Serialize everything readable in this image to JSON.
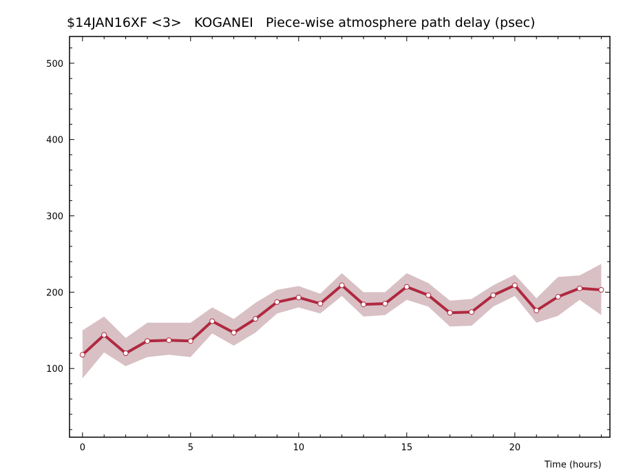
{
  "chart_data": {
    "type": "line",
    "title": "$14JAN16XF <3>   KOGANEI   Piece-wise atmosphere path delay (psec)",
    "xlabel": "Time (hours)",
    "ylabel": "",
    "xlim": [
      -0.6,
      24.4
    ],
    "ylim": [
      10,
      535
    ],
    "x_ticks": [
      0,
      5,
      10,
      15,
      20
    ],
    "y_ticks": [
      100,
      200,
      300,
      400,
      500
    ],
    "x_tick_labels": [
      "0",
      "5",
      "10",
      "15",
      "20"
    ],
    "y_tick_labels": [
      "100",
      "200",
      "300",
      "400",
      "500"
    ],
    "grid": false,
    "colors": {
      "line": "#b0283f",
      "band": "#d8c0c4",
      "marker_fill": "#ffffff"
    },
    "series": [
      {
        "x": [
          0,
          1,
          2,
          3,
          4,
          5,
          6,
          7,
          8,
          9,
          10,
          11,
          12,
          13,
          14,
          15,
          16,
          17,
          18,
          19,
          20,
          21,
          22,
          23,
          24
        ],
        "values": [
          118,
          144,
          120,
          136,
          137,
          136,
          162,
          147,
          165,
          187,
          193,
          185,
          209,
          184,
          185,
          207,
          196,
          173,
          174,
          196,
          209,
          176,
          194,
          205,
          203
        ],
        "upper": [
          150,
          168,
          140,
          160,
          160,
          160,
          180,
          165,
          186,
          203,
          208,
          198,
          225,
          200,
          200,
          225,
          212,
          189,
          191,
          209,
          223,
          192,
          220,
          222,
          237
        ],
        "lower": [
          87,
          121,
          103,
          115,
          118,
          115,
          146,
          130,
          147,
          172,
          180,
          172,
          195,
          168,
          170,
          190,
          181,
          155,
          156,
          181,
          195,
          160,
          169,
          190,
          170
        ]
      }
    ]
  }
}
